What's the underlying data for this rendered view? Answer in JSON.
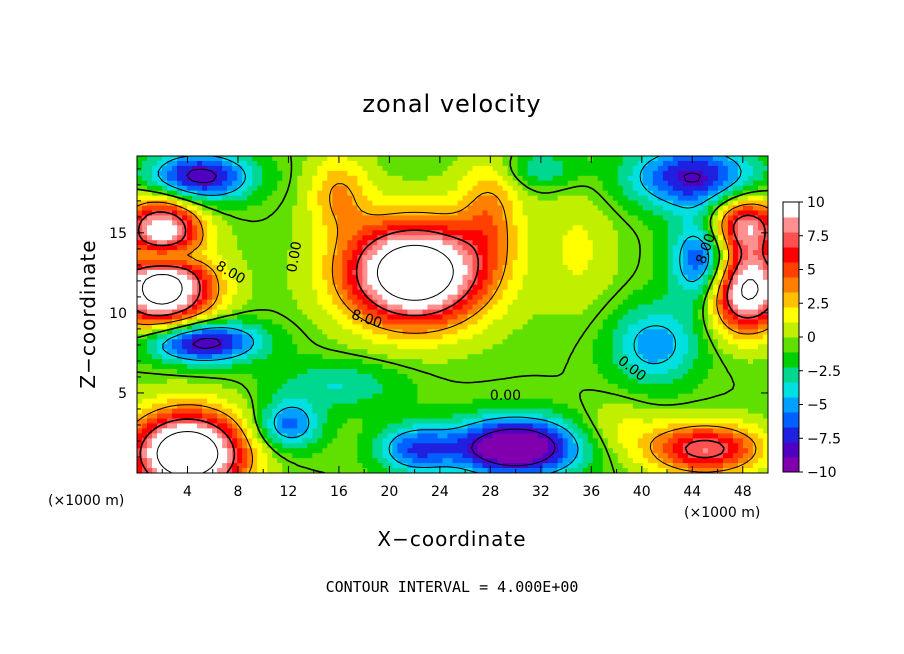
{
  "chart_data": {
    "type": "heatmap",
    "title": "zonal velocity",
    "xlabel": "X−coordinate",
    "ylabel": "Z−coordinate",
    "x_units": "(×1000 m)",
    "y_units": "(×1000 m)",
    "xlim": [
      0,
      50
    ],
    "ylim": [
      0,
      19.8
    ],
    "x_ticks": [
      4,
      8,
      12,
      16,
      20,
      24,
      28,
      32,
      36,
      40,
      44,
      48
    ],
    "x_tick_labels": [
      "4",
      "8",
      "12",
      "16",
      "20",
      "24",
      "28",
      "32",
      "36",
      "40",
      "44",
      "48"
    ],
    "y_ticks": [
      5,
      10,
      15
    ],
    "y_tick_labels": [
      "5",
      "10",
      "15"
    ],
    "colorbar": {
      "min": -10,
      "max": 10,
      "ticks": [
        10,
        7.5,
        5,
        2.5,
        0,
        -2.5,
        -5,
        -7.5,
        -10
      ],
      "tick_labels": [
        "10",
        "7.5",
        "5",
        "2.5",
        "0",
        "−2.5",
        "−5",
        "−7.5",
        "−10"
      ],
      "colors": [
        "#8000b0",
        "#5000c0",
        "#2020e0",
        "#0060ff",
        "#00a0ff",
        "#00e0e0",
        "#00d890",
        "#00d000",
        "#60e000",
        "#c0f000",
        "#ffff00",
        "#ffc000",
        "#ff8000",
        "#ff4000",
        "#ff0000",
        "#ff5050",
        "#ff9090",
        "#ffffff"
      ]
    },
    "contour_interval": 4.0,
    "contour_labels": [
      {
        "text": "0.00",
        "x": 12.5,
        "y": 13.5,
        "angle": -80
      },
      {
        "text": "8.00",
        "x": 7.4,
        "y": 12.5,
        "angle": 30
      },
      {
        "text": "8.00",
        "x": 18.2,
        "y": 9.6,
        "angle": 18
      },
      {
        "text": "0.00",
        "x": 29.2,
        "y": 4.8,
        "angle": 0
      },
      {
        "text": "0.00",
        "x": 39.2,
        "y": 6.5,
        "angle": 38
      },
      {
        "text": "8.00",
        "x": 45.1,
        "y": 14.0,
        "angle": -70
      }
    ],
    "field": {
      "base": 0,
      "bumps": [
        {
          "x": 22,
          "y": 12.5,
          "sx": 5.5,
          "sy": 3.2,
          "a": 16
        },
        {
          "x": 2,
          "y": 11.5,
          "sx": 4,
          "sy": 2.6,
          "a": 14
        },
        {
          "x": 2,
          "y": 15.5,
          "sx": 3,
          "sy": 1.8,
          "a": 10
        },
        {
          "x": 48,
          "y": 11.5,
          "sx": 3.5,
          "sy": 2.6,
          "a": 14
        },
        {
          "x": 48,
          "y": 15.5,
          "sx": 3,
          "sy": 1.8,
          "a": 10
        },
        {
          "x": 4,
          "y": 1.2,
          "sx": 4.5,
          "sy": 2.6,
          "a": 16
        },
        {
          "x": 45,
          "y": 1.5,
          "sx": 4.5,
          "sy": 1.6,
          "a": 9
        },
        {
          "x": 28,
          "y": 16.5,
          "sx": 2.5,
          "sy": 3.5,
          "a": 4
        },
        {
          "x": 16,
          "y": 17.5,
          "sx": 2.5,
          "sy": 2.5,
          "a": 4
        },
        {
          "x": 35,
          "y": 14,
          "sx": 3,
          "sy": 4,
          "a": 2
        },
        {
          "x": 5,
          "y": 18.5,
          "sx": 4,
          "sy": 1.5,
          "a": -9
        },
        {
          "x": 32,
          "y": 19,
          "sx": 3,
          "sy": 1.2,
          "a": -3
        },
        {
          "x": 44,
          "y": 18.5,
          "sx": 5,
          "sy": 2,
          "a": -8
        },
        {
          "x": 5,
          "y": 8.2,
          "sx": 4.5,
          "sy": 1.3,
          "a": -10
        },
        {
          "x": 2,
          "y": 13.5,
          "sx": 3,
          "sy": 0.8,
          "a": -6
        },
        {
          "x": 45,
          "y": 13,
          "sx": 2.5,
          "sy": 3,
          "a": -10
        },
        {
          "x": 41,
          "y": 8,
          "sx": 3.5,
          "sy": 2.5,
          "a": -5
        },
        {
          "x": 30,
          "y": 1.6,
          "sx": 5,
          "sy": 1.8,
          "a": -12
        },
        {
          "x": 12,
          "y": 3,
          "sx": 2.5,
          "sy": 1.5,
          "a": -6
        },
        {
          "x": 16,
          "y": 5.5,
          "sx": 5,
          "sy": 1.5,
          "a": -3
        },
        {
          "x": 22,
          "y": 1.5,
          "sx": 3,
          "sy": 1.5,
          "a": -6
        },
        {
          "x": 38,
          "y": 2.8,
          "sx": 3,
          "sy": 1.8,
          "a": 2
        }
      ]
    }
  },
  "footer": "CONTOUR INTERVAL = 4.000E+00"
}
